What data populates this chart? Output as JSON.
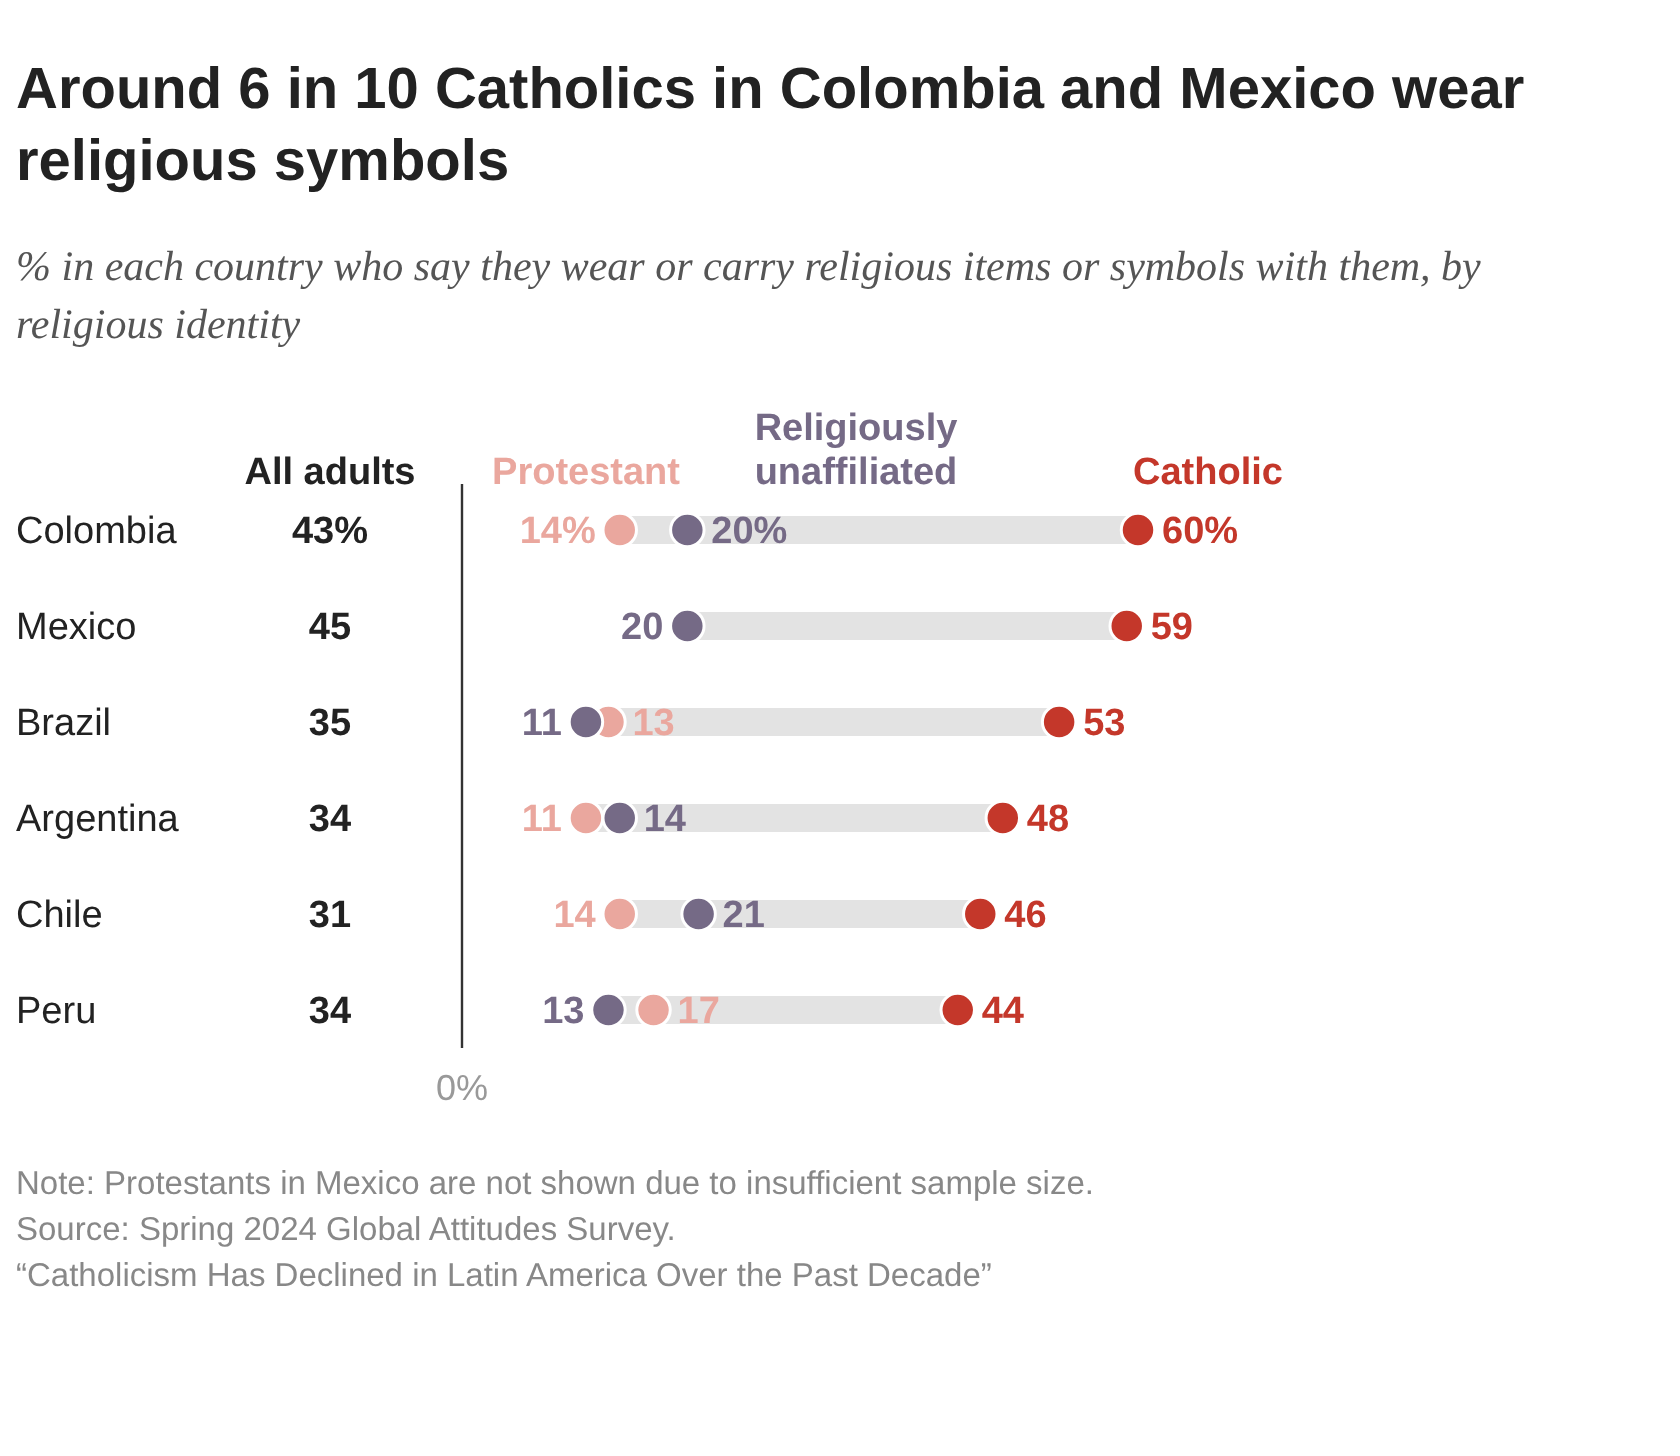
{
  "chart_data": [
    {
      "type": "scatter",
      "orientation": "horizontal",
      "title": "Around 6 in 10 Catholics in Colombia and Mexico wear religious symbols",
      "subtitle": "% in each country who say they wear or carry religious items or symbols with them, by religious identity",
      "categories": [
        "Colombia",
        "Mexico",
        "Brazil",
        "Argentina",
        "Chile",
        "Peru"
      ],
      "legend": "top",
      "marker": "circle",
      "series": [
        {
          "name": "Protestant",
          "color": "#eaa79e",
          "values": [
            14,
            null,
            13,
            11,
            14,
            17
          ],
          "value_labels": [
            "14%",
            null,
            "13",
            "11",
            "14",
            "17"
          ]
        },
        {
          "name": "Religiously unaffiliated",
          "color": "#756a86",
          "values": [
            20,
            20,
            11,
            14,
            21,
            13
          ],
          "value_labels": [
            "20%",
            "20",
            "11",
            "14",
            "21",
            "13"
          ]
        },
        {
          "name": "Catholic",
          "color": "#c4372a",
          "values": [
            60,
            59,
            53,
            48,
            46,
            44
          ],
          "value_labels": [
            "60%",
            "59",
            "53",
            "48",
            "46",
            "44"
          ]
        }
      ],
      "annotations": [
        "0%",
        "Note: Protestants in Mexico are not shown due to insufficient sample size.",
        "Source: Spring 2024 Global Attitudes Survey.",
        "“Catholicism Has Declined in Latin America Over the Past Decade”"
      ]
    },
    {
      "type": "other",
      "title": "All adults",
      "categories": [
        null,
        null,
        null,
        null,
        null,
        null
      ],
      "value_labels": [
        "43%",
        "45",
        "35",
        "34",
        "31",
        "34"
      ]
    }
  ]
}
